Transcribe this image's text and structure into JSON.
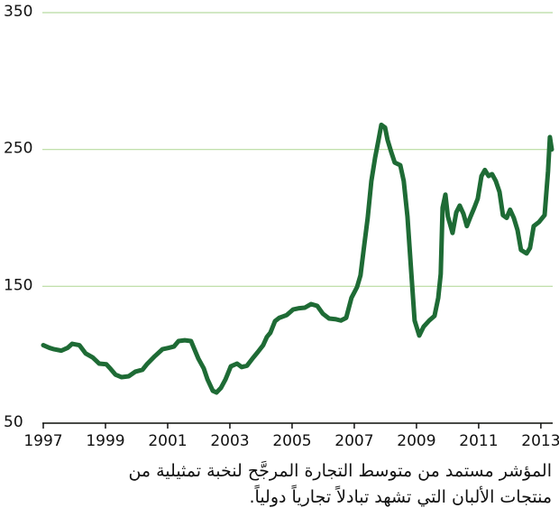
{
  "chart_data": {
    "type": "line",
    "x": [
      1997.0,
      1997.2,
      1997.35,
      1997.58,
      1997.78,
      1997.93,
      1998.16,
      1998.36,
      1998.59,
      1998.8,
      1999.03,
      1999.17,
      1999.32,
      1999.52,
      1999.75,
      1999.96,
      2000.19,
      2000.33,
      2000.59,
      2000.83,
      2001.03,
      2001.2,
      2001.35,
      2001.55,
      2001.75,
      2001.99,
      2002.16,
      2002.28,
      2002.45,
      2002.57,
      2002.71,
      2002.86,
      2003.03,
      2003.23,
      2003.38,
      2003.55,
      2003.72,
      2003.9,
      2004.07,
      2004.19,
      2004.3,
      2004.45,
      2004.59,
      2004.83,
      2005.03,
      2005.23,
      2005.41,
      2005.61,
      2005.81,
      2005.99,
      2006.19,
      2006.39,
      2006.57,
      2006.74,
      2006.91,
      2007.09,
      2007.2,
      2007.32,
      2007.43,
      2007.55,
      2007.67,
      2007.78,
      2007.87,
      2007.99,
      2008.07,
      2008.19,
      2008.3,
      2008.48,
      2008.59,
      2008.71,
      2008.83,
      2008.94,
      2009.09,
      2009.23,
      2009.41,
      2009.58,
      2009.7,
      2009.78,
      2009.84,
      2009.93,
      2010.01,
      2010.16,
      2010.28,
      2010.39,
      2010.51,
      2010.62,
      2010.74,
      2010.86,
      2010.97,
      2011.09,
      2011.2,
      2011.32,
      2011.43,
      2011.55,
      2011.67,
      2011.78,
      2011.9,
      2012.01,
      2012.13,
      2012.25,
      2012.36,
      2012.54,
      2012.65,
      2012.77,
      2012.94,
      2013.12,
      2013.23,
      2013.29,
      2013.35
    ],
    "values": [
      107,
      105,
      104,
      103,
      105,
      108,
      107,
      101,
      98,
      93.5,
      93,
      89.5,
      85.5,
      83.6,
      84.3,
      87.6,
      89,
      93,
      99,
      104,
      105,
      106,
      110,
      110.6,
      110,
      97,
      90,
      82,
      73.7,
      72.4,
      75.7,
      82,
      91.5,
      93.5,
      91,
      92,
      97,
      102,
      107,
      113,
      116,
      124.5,
      127,
      129,
      133,
      134,
      134.4,
      137,
      135.7,
      130,
      126.5,
      126,
      125,
      127,
      141.6,
      149.5,
      158,
      180,
      199.6,
      227,
      244,
      257,
      268,
      266,
      257,
      248,
      240.5,
      238.5,
      227,
      201,
      161,
      125,
      114,
      120.5,
      125,
      128.4,
      141.6,
      159,
      207.5,
      217,
      201,
      189,
      204,
      209,
      203,
      194,
      201,
      207.5,
      214,
      230.6,
      235,
      230.6,
      232,
      227,
      219,
      202,
      200,
      206,
      200,
      191,
      176.6,
      174,
      178,
      194,
      197,
      202,
      234,
      259,
      250
    ],
    "color": "#1e6b35",
    "grid_color": "#b8dba0",
    "xlim": [
      1997,
      2013.38
    ],
    "xticks": [
      1997,
      1999,
      2001,
      2003,
      2005,
      2007,
      2009,
      2011,
      2013
    ],
    "ylim": [
      50,
      350
    ],
    "yticks": [
      50,
      150,
      250,
      350
    ],
    "grid": true,
    "caption": [
      "المؤشر مستمد من متوسط التجارة المرجَّح لنخبة تمثيلية من",
      "منتجات الألبان التي تشهد تبادلاً تجارياً دولياً."
    ]
  }
}
